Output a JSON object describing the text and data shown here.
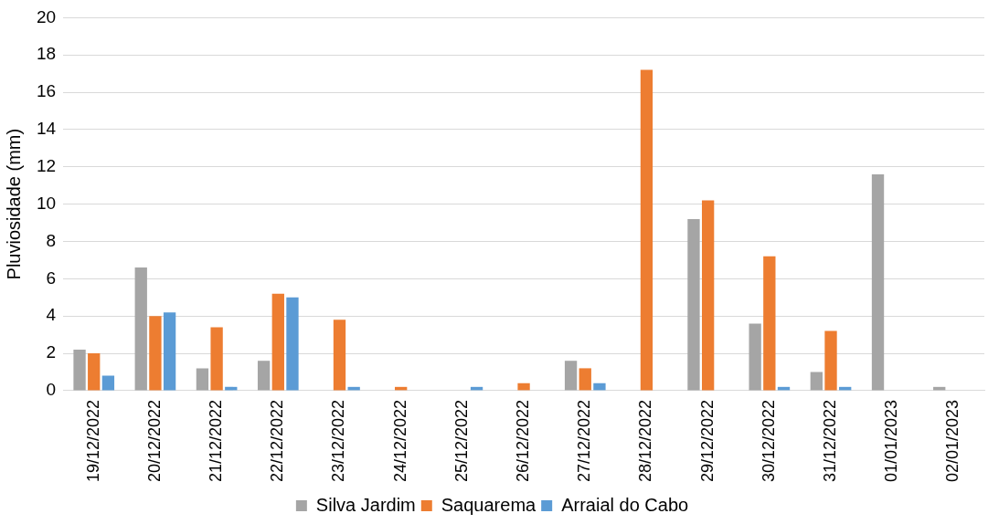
{
  "chart_data": {
    "type": "bar",
    "ylabel": "Pluviosidade (mm)",
    "categories": [
      "19/12/2022",
      "20/12/2022",
      "21/12/2022",
      "22/12/2022",
      "23/12/2022",
      "24/12/2022",
      "25/12/2022",
      "26/12/2022",
      "27/12/2022",
      "28/12/2022",
      "29/12/2022",
      "30/12/2022",
      "31/12/2022",
      "01/01/2023",
      "02/01/2023"
    ],
    "series": [
      {
        "name": "Silva Jardim",
        "color": "#a5a5a5",
        "values": [
          2.2,
          6.6,
          1.2,
          1.6,
          0,
          0,
          0,
          0,
          1.6,
          0,
          9.2,
          3.6,
          1.0,
          11.6,
          0.2
        ]
      },
      {
        "name": "Saquarema",
        "color": "#ed7d31",
        "values": [
          2.0,
          4.0,
          3.4,
          5.2,
          3.8,
          0.2,
          0,
          0.4,
          1.2,
          17.2,
          10.2,
          7.2,
          3.2,
          0,
          0
        ]
      },
      {
        "name": "Arraial do Cabo",
        "color": "#5b9bd5",
        "values": [
          0.8,
          4.2,
          0.2,
          5.0,
          0.2,
          0,
          0.2,
          0,
          0.4,
          0,
          0,
          0.2,
          0.2,
          0,
          0
        ]
      }
    ],
    "ylim": [
      0,
      20
    ],
    "yticks": [
      0,
      2,
      4,
      6,
      8,
      10,
      12,
      14,
      16,
      18,
      20
    ],
    "grid": "y",
    "legend": "bottom"
  }
}
